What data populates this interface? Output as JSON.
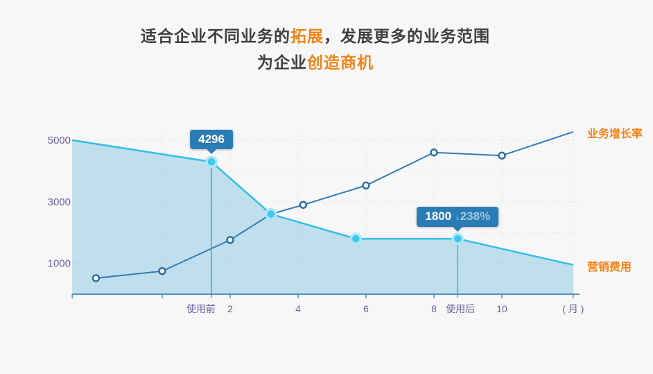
{
  "page": {
    "background": "#f7f7f7"
  },
  "title": {
    "line1_pre": "适合企业不同业务的",
    "line1_highlight": "拓展",
    "line1_post": "，发展更多的业务范围",
    "line2_pre": "为企业",
    "line2_highlight": "创造商机",
    "text_color": "#3f3f3f",
    "highlight_color": "#f28418"
  },
  "chart_data": {
    "type": "line",
    "title": "",
    "xlabel": "( 月 )",
    "grid": "dashed",
    "x_axis": {
      "unit_label": "( 月 )",
      "unit_label_month": 12.1,
      "tick_labels": [
        {
          "label": "使用前",
          "month": 1.14
        },
        {
          "label": "2",
          "month": 2
        },
        {
          "label": "4",
          "month": 4
        },
        {
          "label": "6",
          "month": 6
        },
        {
          "label": "8",
          "month": 8
        },
        {
          "label": "使用后",
          "month": 8.78
        },
        {
          "label": "10",
          "month": 10
        }
      ],
      "tick_marks_months": [
        -2.65,
        0,
        2,
        4,
        6,
        8,
        10,
        12.1
      ],
      "gridline_months": [
        0,
        2,
        4,
        6,
        8,
        10,
        12.1
      ],
      "range_months": [
        -2.65,
        12.1
      ],
      "axis_color": "#4e8fc8",
      "label_color": "#6a5fa0"
    },
    "y_axis": {
      "tick_labels": [
        {
          "label": "5000",
          "value": 5000
        },
        {
          "label": "3000",
          "value": 3000
        },
        {
          "label": "1000",
          "value": 1000
        }
      ],
      "gridline_values": [
        1000,
        2000,
        3000,
        4000,
        5000
      ],
      "range": [
        0,
        5400
      ],
      "label_color": "#6a5fa0",
      "grid_color": "#dcdbe4"
    },
    "series": [
      {
        "name": "营销费用",
        "role": "marketing-cost",
        "line_color": "#32bde9",
        "area_fill": "rgba(80,175,218,0.33)",
        "marker_style": {
          "type": "filled",
          "fill": "#3dc8f0",
          "ring": "#aee6f7"
        },
        "points": [
          {
            "month": -2.65,
            "value": 5000
          },
          {
            "month": 1.45,
            "value": 4296,
            "marker": true
          },
          {
            "month": 3.2,
            "value": 2600,
            "marker": true
          },
          {
            "month": 5.7,
            "value": 1800,
            "marker": true
          },
          {
            "month": 8.7,
            "value": 1800,
            "marker": true
          },
          {
            "month": 12.1,
            "value": 950
          }
        ]
      },
      {
        "name": "业务增长率",
        "role": "business-growth",
        "line_color": "#2f7cb6",
        "marker_style": {
          "type": "hollow",
          "fill": "#fafafa",
          "stroke": "#2b6b9b"
        },
        "points": [
          {
            "month": -1.95,
            "value": 520,
            "marker": true
          },
          {
            "month": 0,
            "value": 750,
            "marker": true
          },
          {
            "month": 2,
            "value": 1760,
            "marker": true
          },
          {
            "month": 3.2,
            "value": 2600
          },
          {
            "month": 4.15,
            "value": 2900,
            "marker": true
          },
          {
            "month": 6,
            "value": 3530,
            "marker": true
          },
          {
            "month": 8,
            "value": 4600,
            "marker": true
          },
          {
            "month": 10,
            "value": 4500,
            "marker": true
          },
          {
            "month": 12.1,
            "value": 5270
          }
        ]
      }
    ],
    "annotations": [
      {
        "id": "before",
        "value_text": "4296",
        "series": 0,
        "point_index": 1,
        "box_color": "#2a7cb5"
      },
      {
        "id": "after",
        "value_text": "1800",
        "arrow": "↓",
        "delta_text": "238%",
        "series": 0,
        "point_index": 4,
        "box_color": "#2a7cb5"
      }
    ],
    "series_end_labels": [
      {
        "text": "业务增长率",
        "color": "#f28418",
        "series": 1
      },
      {
        "text": "营销费用",
        "color": "#f28418",
        "series": 0
      }
    ],
    "refline_color": "#3aa9dc"
  }
}
